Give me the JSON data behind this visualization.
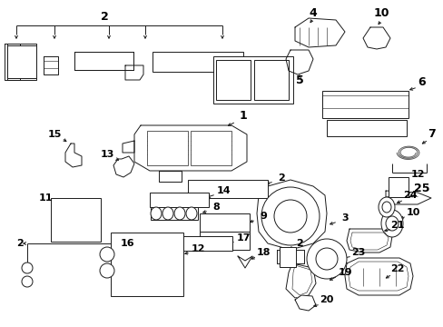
{
  "bg_color": "#ffffff",
  "line_color": "#1a1a1a",
  "text_color": "#000000",
  "fig_width": 4.89,
  "fig_height": 3.6,
  "dpi": 100,
  "label_fs": 7.5,
  "lw": 0.7
}
